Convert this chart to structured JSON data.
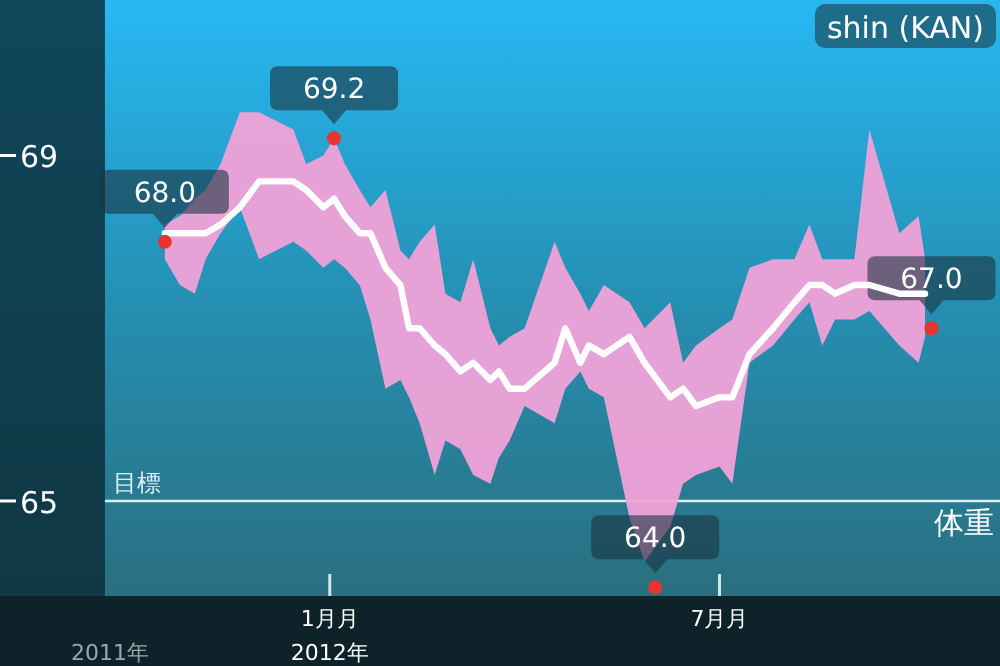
{
  "chart_data": {
    "type": "line",
    "title": "shin (KAN)",
    "x": [
      "2011-10-16",
      "2011-10-23",
      "2011-10-30",
      "2011-11-04",
      "2011-11-11",
      "2011-11-20",
      "2011-11-29",
      "2011-12-15",
      "2011-12-21",
      "2011-12-29",
      "2012-01-03",
      "2012-01-08",
      "2012-01-15",
      "2012-01-20",
      "2012-01-27",
      "2012-02-03",
      "2012-02-07",
      "2012-02-12",
      "2012-02-19",
      "2012-02-24",
      "2012-03-02",
      "2012-03-08",
      "2012-03-16",
      "2012-03-20",
      "2012-03-25",
      "2012-04-01",
      "2012-04-15",
      "2012-04-20",
      "2012-04-27",
      "2012-05-01",
      "2012-05-08",
      "2012-05-20",
      "2012-05-27",
      "2012-06-08",
      "2012-06-14",
      "2012-06-20",
      "2012-07-01",
      "2012-07-07",
      "2012-07-15",
      "2012-07-26",
      "2012-08-05",
      "2012-08-12",
      "2012-08-18",
      "2012-08-24",
      "2012-09-02",
      "2012-09-09",
      "2012-09-23",
      "2012-10-02",
      "2012-10-05"
    ],
    "series": [
      {
        "color": "#ffffff",
        "values": [
          68.1,
          68.1,
          68.1,
          68.1,
          68.2,
          68.4,
          68.7,
          68.7,
          68.6,
          68.4,
          68.5,
          68.3,
          68.1,
          68.1,
          67.7,
          67.5,
          67.0,
          67.0,
          66.8,
          66.7,
          66.5,
          66.6,
          66.4,
          66.5,
          66.3,
          66.3,
          66.6,
          67.0,
          66.6,
          66.8,
          66.7,
          66.9,
          66.6,
          66.2,
          66.3,
          66.1,
          66.2,
          66.2,
          66.7,
          67.0,
          67.3,
          67.5,
          67.5,
          67.4,
          67.5,
          67.5,
          67.4,
          67.4,
          67.4
        ],
        "upper": [
          68.2,
          68.3,
          68.5,
          68.6,
          68.9,
          69.5,
          69.5,
          69.3,
          68.9,
          69.0,
          69.2,
          68.9,
          68.6,
          68.4,
          68.6,
          67.9,
          67.8,
          68.0,
          68.2,
          67.4,
          67.3,
          67.8,
          67.0,
          66.8,
          66.9,
          67.0,
          68.0,
          67.7,
          67.4,
          67.2,
          67.5,
          67.3,
          67.0,
          67.3,
          66.6,
          66.8,
          67.0,
          67.1,
          67.7,
          67.8,
          67.8,
          68.2,
          67.8,
          67.8,
          67.8,
          69.3,
          68.1,
          68.3,
          67.8
        ],
        "lower": [
          67.8,
          67.5,
          67.4,
          67.8,
          68.1,
          68.4,
          67.8,
          68.0,
          67.9,
          67.7,
          67.8,
          67.7,
          67.5,
          67.1,
          66.3,
          66.4,
          66.2,
          65.9,
          65.3,
          65.7,
          65.6,
          65.3,
          65.2,
          65.5,
          65.7,
          66.1,
          65.9,
          66.3,
          66.5,
          66.3,
          66.2,
          64.8,
          64.3,
          64.7,
          65.2,
          65.3,
          65.4,
          65.2,
          66.6,
          66.8,
          67.1,
          67.3,
          66.8,
          67.1,
          67.1,
          67.2,
          66.8,
          66.6,
          66.9
        ]
      },
      {
        "type": "scatter",
        "color": "#e8342f",
        "x": [
          "2011-10-16",
          "2012-01-03",
          "2012-06-01",
          "2012-10-08"
        ],
        "values": [
          68.0,
          69.2,
          64.0,
          67.0
        ],
        "value_labels": [
          "68.0",
          "69.2",
          "64.0",
          "67.0"
        ]
      }
    ],
    "xlim": [
      "2011-07-31",
      "2012-11-09"
    ],
    "bands": [
      {
        "axis": "x",
        "from": "2011-07-31",
        "to": "2011-09-18",
        "color": "#0b2a36"
      }
    ],
    "xticks": [
      {
        "value": "2012-01-01",
        "label": "1月月\n2012年"
      },
      {
        "value": "2012-07-01",
        "label": "7月月"
      }
    ],
    "ylim": [
      63.9,
      70.8
    ],
    "yticks": [
      65,
      69
    ],
    "ref_lines": [
      {
        "axis": "y",
        "value": 65,
        "label": "目標",
        "color": "#d8eef4"
      }
    ],
    "annotations": [
      "体重",
      "2011年"
    ],
    "grid": false
  }
}
